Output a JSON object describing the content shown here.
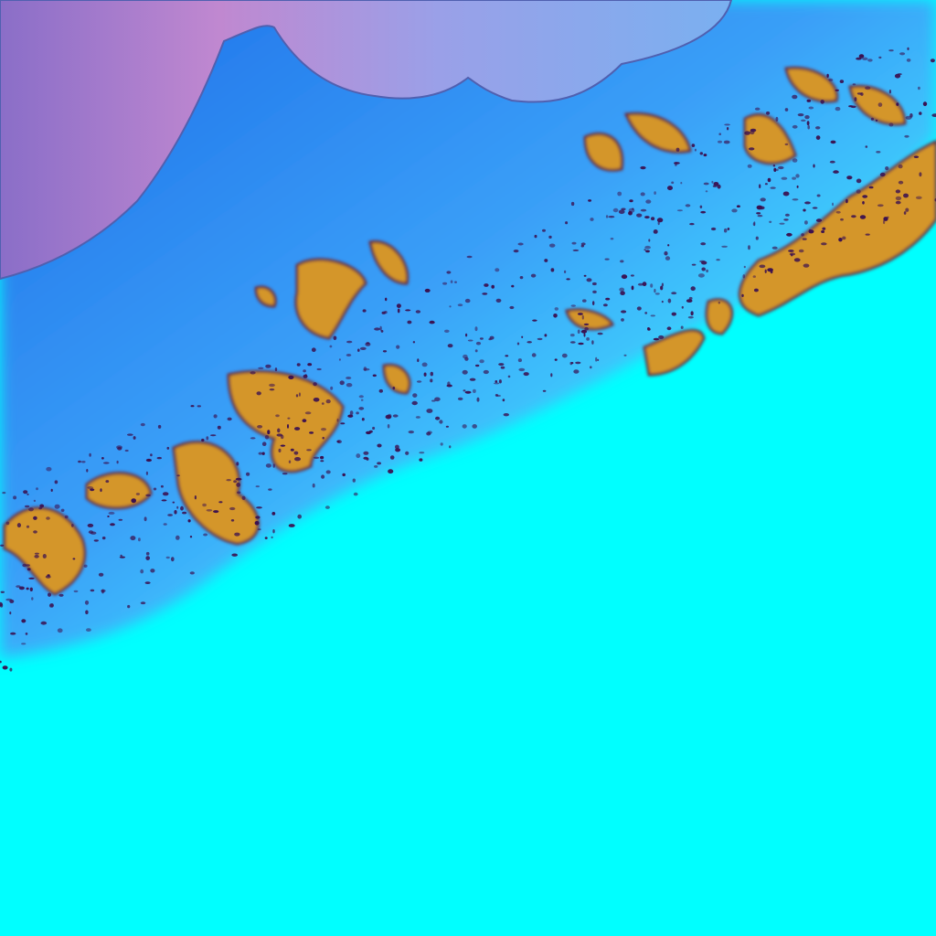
{
  "image": {
    "kind": "false-color satellite imagery",
    "colors": {
      "haze": "#9a7fd0",
      "deep_blue": "#1e78f0",
      "mid_blue": "#3aa0f8",
      "cyan": "#00ffff",
      "terrain": "#d4962a",
      "terrain_edge": "#6a2a40",
      "speckle": "#3a1050"
    }
  }
}
